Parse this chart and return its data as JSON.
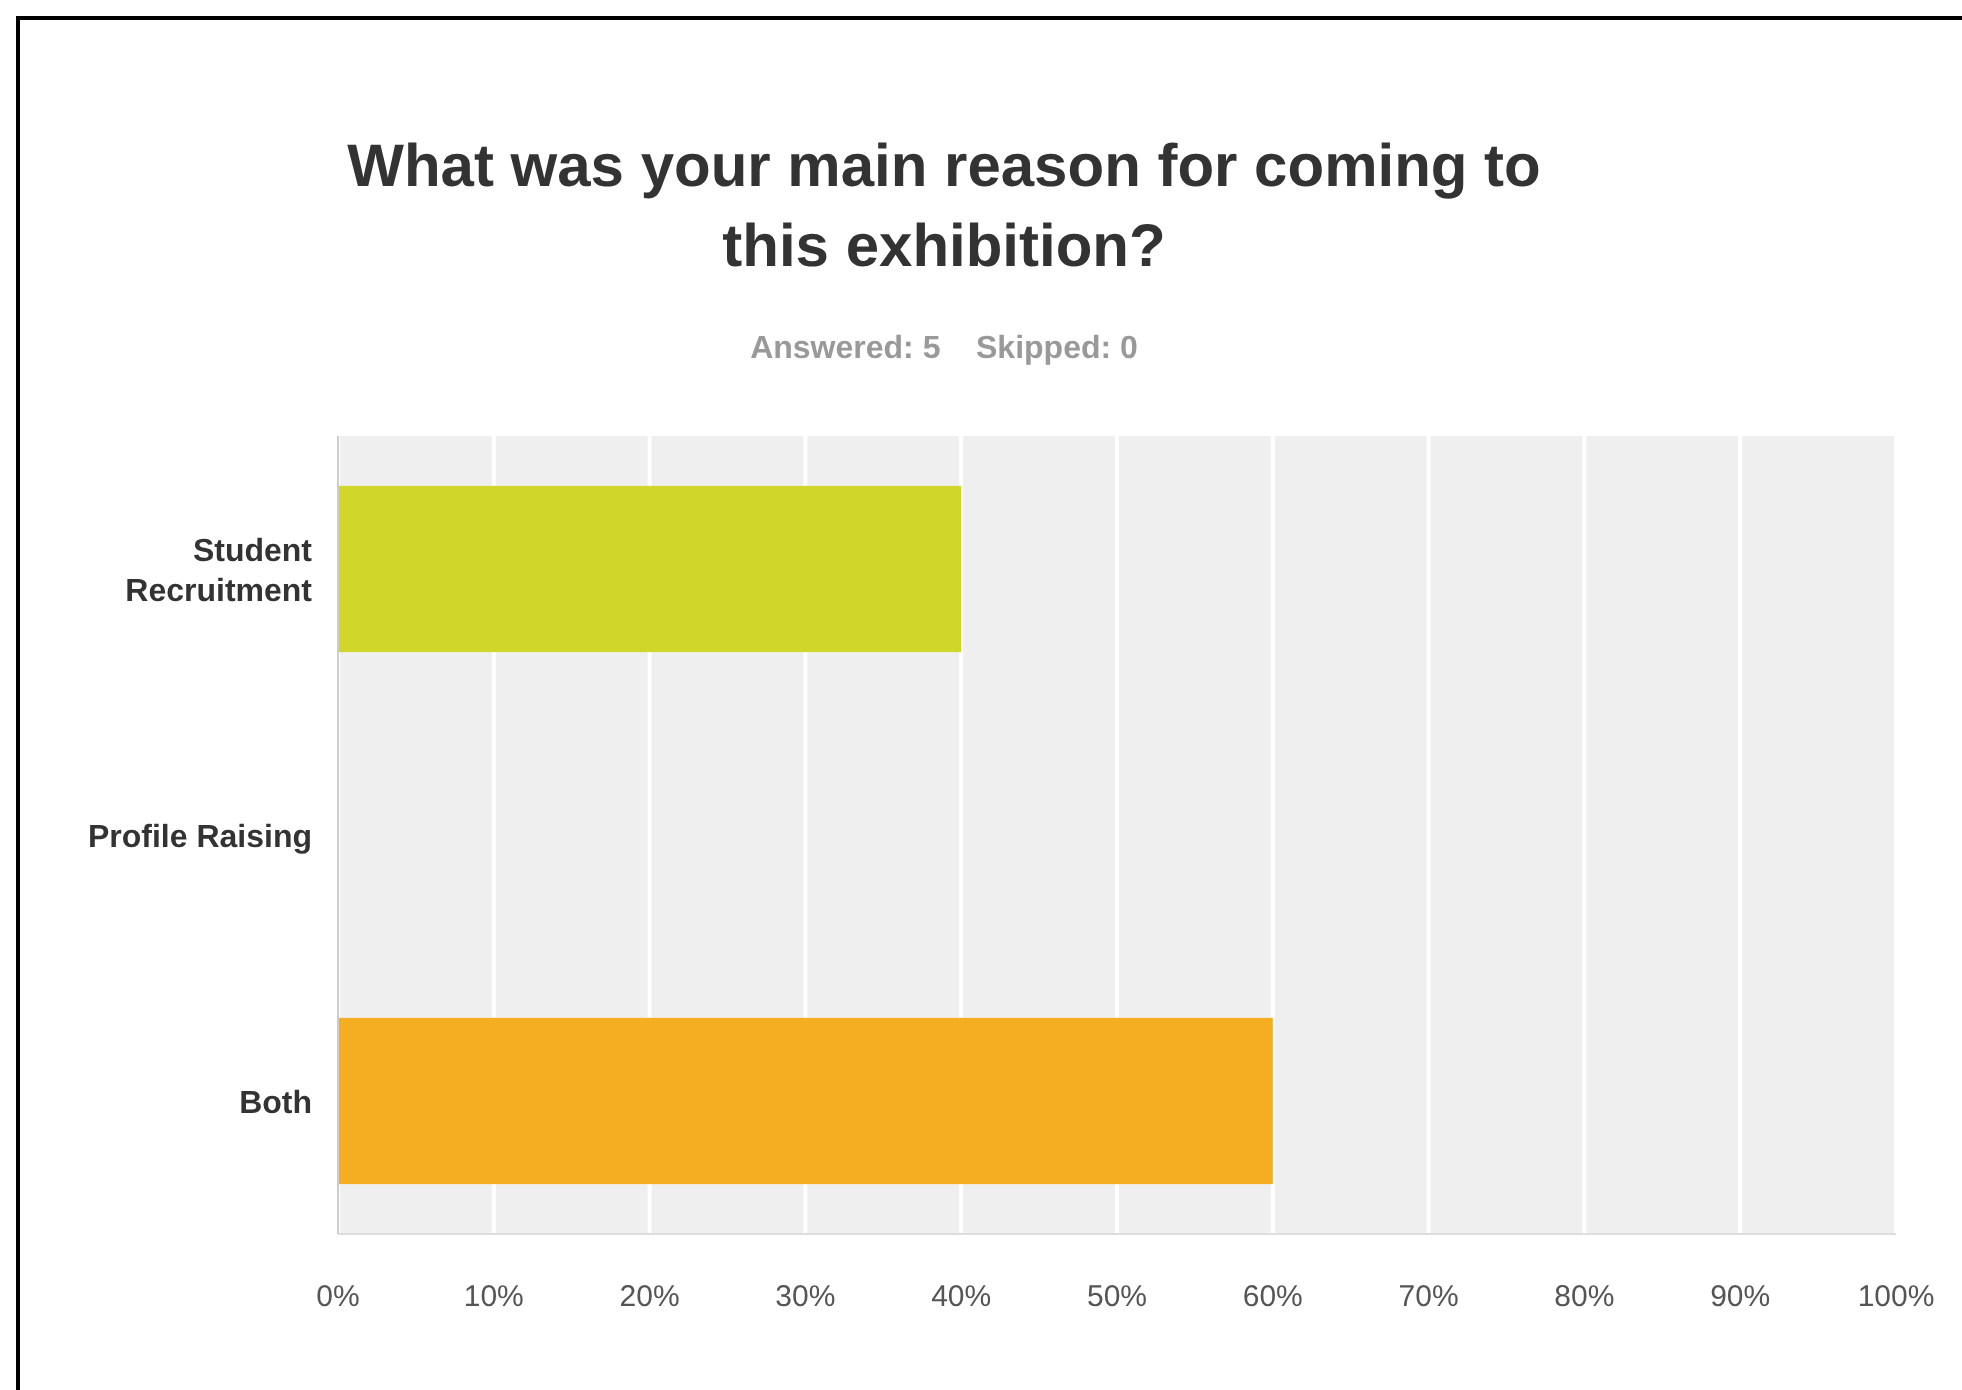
{
  "chart_data": {
    "type": "bar",
    "orientation": "horizontal",
    "title": "What was your main reason for coming to this exhibition?",
    "subtitle": "Answered: 5    Skipped: 0",
    "categories": [
      "Student Recruitment",
      "Profile Raising",
      "Both"
    ],
    "values": [
      40,
      0,
      60
    ],
    "colors": [
      "#d0d62a",
      "#a4c639",
      "#f5ae22"
    ],
    "xlim": [
      0,
      100
    ],
    "xticks": [
      {
        "value": 0,
        "label": "0%"
      },
      {
        "value": 10,
        "label": "10%"
      },
      {
        "value": 20,
        "label": "20%"
      },
      {
        "value": 30,
        "label": "30%"
      },
      {
        "value": 40,
        "label": "40%"
      },
      {
        "value": 50,
        "label": "50%"
      },
      {
        "value": 60,
        "label": "60%"
      },
      {
        "value": 70,
        "label": "70%"
      },
      {
        "value": 80,
        "label": "80%"
      },
      {
        "value": 90,
        "label": "90%"
      },
      {
        "value": 100,
        "label": "100%"
      }
    ],
    "grid": "x"
  }
}
